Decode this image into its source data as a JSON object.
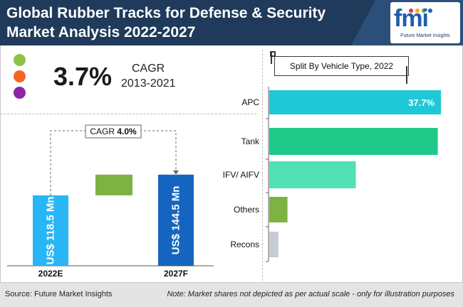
{
  "header": {
    "title_line1": "Global Rubber Tracks for Defense & Security",
    "title_line2": "Market Analysis 2022-2027"
  },
  "logo": {
    "text": "fmi",
    "tagline": "Future Market Insights",
    "dot_colors": [
      "#e33b2d",
      "#f5a623",
      "#4caf50",
      "#1f5fa8"
    ]
  },
  "colors": {
    "header_bg": "#1f3a5a",
    "legend_dots": [
      "#8bc34a",
      "#f26522",
      "#8e24aa"
    ]
  },
  "cagr": {
    "value": "3.7%",
    "label": "CAGR",
    "period": "2013-2021"
  },
  "waterfall": {
    "cagr_label": "CAGR",
    "cagr_value": "4.0%",
    "bars": [
      {
        "category": "2022E",
        "value": 118.5,
        "label": "US$ 118.5 Mn",
        "color": "#29b6f6"
      },
      {
        "category": "2027F",
        "value": 144.5,
        "label": "US$ 144.5 Mn",
        "color": "#1565c0"
      }
    ],
    "increment_color": "#7cb342"
  },
  "chart_data": [
    {
      "type": "bar",
      "orientation": "vertical",
      "categories": [
        "2022E",
        "2027F"
      ],
      "values": [
        118.5,
        144.5
      ],
      "data_labels": [
        "US$ 118.5 Mn",
        "US$ 144.5 Mn"
      ],
      "annotation": "CAGR 4.0%"
    },
    {
      "type": "bar",
      "orientation": "horizontal",
      "title": "Split By Vehicle Type, 2022",
      "categories": [
        "APC",
        "Tank",
        "IFV/ AIFV",
        "Others",
        "Recons"
      ],
      "values": [
        37.7,
        37.0,
        19.0,
        4.0,
        2.0
      ],
      "labeled_values": [
        "37.7%",
        "",
        "",
        "",
        ""
      ],
      "colors": [
        "#1ec8d6",
        "#1fc98a",
        "#4fe0b6",
        "#7cb342",
        "#c5ccd6"
      ],
      "xlim": [
        0,
        38
      ]
    }
  ],
  "footer": {
    "source": "Source: Future Market Insights",
    "note": "Note: Market shares not depicted as per actual scale - only for illustration purposes"
  }
}
